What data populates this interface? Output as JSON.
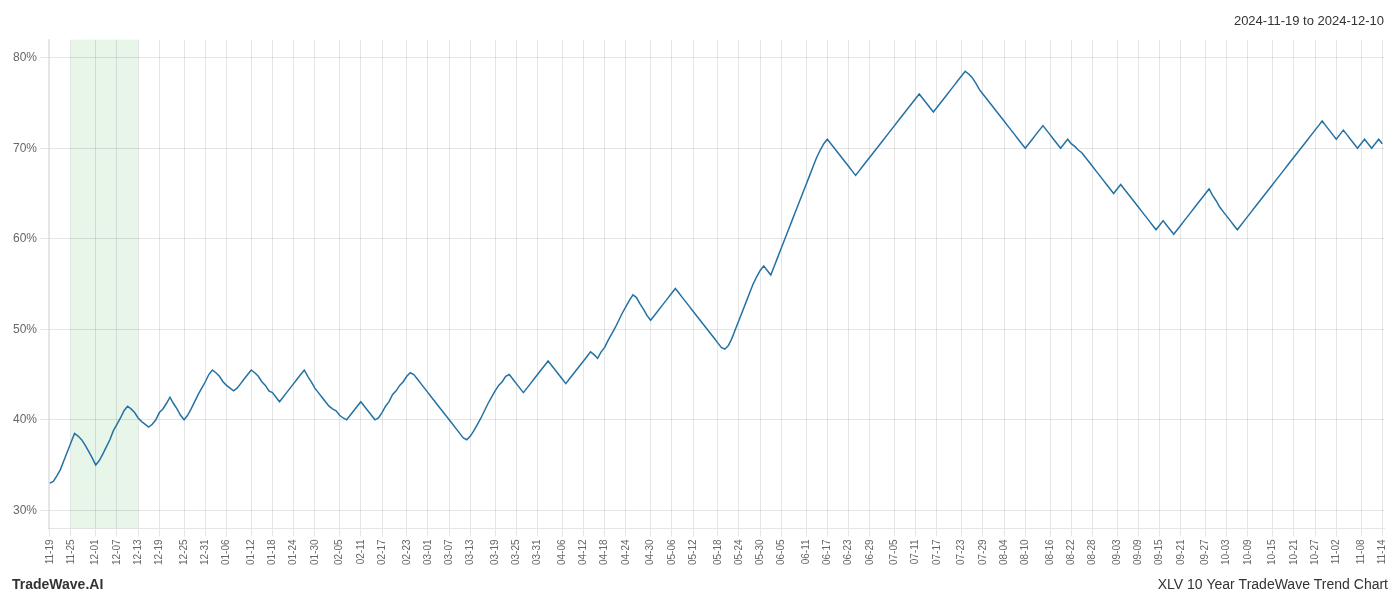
{
  "chart_data": {
    "type": "line",
    "title": "2024-11-19 to 2024-12-10",
    "footnotes": [
      "TradeWave.AI",
      "XLV 10 Year TradeWave Trend Chart"
    ],
    "categories": [
      "11-19",
      null,
      null,
      null,
      null,
      null,
      "11-25",
      null,
      null,
      null,
      null,
      null,
      null,
      "12-01",
      null,
      null,
      null,
      null,
      null,
      "12-07",
      null,
      null,
      null,
      null,
      null,
      "12-13",
      null,
      null,
      null,
      null,
      null,
      "12-19",
      null,
      null,
      null,
      null,
      null,
      null,
      "12-25",
      null,
      null,
      null,
      null,
      null,
      "12-31",
      null,
      null,
      null,
      null,
      null,
      "01-06",
      null,
      null,
      null,
      null,
      null,
      null,
      "01-12",
      null,
      null,
      null,
      null,
      null,
      "01-18",
      null,
      null,
      null,
      null,
      null,
      "01-24",
      null,
      null,
      null,
      null,
      null,
      "01-30",
      null,
      null,
      null,
      null,
      null,
      null,
      "02-05",
      null,
      null,
      null,
      null,
      null,
      "02-11",
      null,
      null,
      null,
      null,
      null,
      "02-17",
      null,
      null,
      null,
      null,
      null,
      null,
      "02-23",
      null,
      null,
      null,
      null,
      null,
      "03-01",
      null,
      null,
      null,
      null,
      null,
      "03-07",
      null,
      null,
      null,
      null,
      null,
      "03-13",
      null,
      null,
      null,
      null,
      null,
      null,
      "03-19",
      null,
      null,
      null,
      null,
      null,
      "03-25",
      null,
      null,
      null,
      null,
      null,
      "03-31",
      null,
      null,
      null,
      null,
      null,
      null,
      "04-06",
      null,
      null,
      null,
      null,
      null,
      "04-12",
      null,
      null,
      null,
      null,
      null,
      "04-18",
      null,
      null,
      null,
      null,
      null,
      "04-24",
      null,
      null,
      null,
      null,
      null,
      null,
      "04-30",
      null,
      null,
      null,
      null,
      null,
      "05-06",
      null,
      null,
      null,
      null,
      null,
      "05-12",
      null,
      null,
      null,
      null,
      null,
      null,
      "05-18",
      null,
      null,
      null,
      null,
      null,
      "05-24",
      null,
      null,
      null,
      null,
      null,
      "05-30",
      null,
      null,
      null,
      null,
      null,
      "06-05",
      null,
      null,
      null,
      null,
      null,
      null,
      "06-11",
      null,
      null,
      null,
      null,
      null,
      "06-17",
      null,
      null,
      null,
      null,
      null,
      "06-23",
      null,
      null,
      null,
      null,
      null,
      "06-29",
      null,
      null,
      null,
      null,
      null,
      null,
      "07-05",
      null,
      null,
      null,
      null,
      null,
      "07-11",
      null,
      null,
      null,
      null,
      null,
      "07-17",
      null,
      null,
      null,
      null,
      null,
      null,
      "07-23",
      null,
      null,
      null,
      null,
      null,
      "07-29",
      null,
      null,
      null,
      null,
      null,
      "08-04",
      null,
      null,
      null,
      null,
      null,
      "08-10",
      null,
      null,
      null,
      null,
      null,
      null,
      "08-16",
      null,
      null,
      null,
      null,
      null,
      "08-22",
      null,
      null,
      null,
      null,
      null,
      "08-28",
      null,
      null,
      null,
      null,
      null,
      null,
      "09-03",
      null,
      null,
      null,
      null,
      null,
      "09-09",
      null,
      null,
      null,
      null,
      null,
      "09-15",
      null,
      null,
      null,
      null,
      null,
      "09-21",
      null,
      null,
      null,
      null,
      null,
      null,
      "09-27",
      null,
      null,
      null,
      null,
      null,
      "10-03",
      null,
      null,
      null,
      null,
      null,
      "10-09",
      null,
      null,
      null,
      null,
      null,
      null,
      "10-15",
      null,
      null,
      null,
      null,
      null,
      "10-21",
      null,
      null,
      null,
      null,
      null,
      "10-27",
      null,
      null,
      null,
      null,
      null,
      "11-02",
      null,
      null,
      null,
      null,
      null,
      null,
      "11-08",
      null,
      null,
      null,
      null,
      null,
      "11-14"
    ],
    "values": [
      33.0,
      33.2,
      33.8,
      34.5,
      35.5,
      36.5,
      37.5,
      38.5,
      38.2,
      37.8,
      37.2,
      36.5,
      35.8,
      35.0,
      35.5,
      36.2,
      37.0,
      37.8,
      38.8,
      39.5,
      40.2,
      41.0,
      41.5,
      41.2,
      40.8,
      40.2,
      39.8,
      39.5,
      39.2,
      39.5,
      40.0,
      40.8,
      41.2,
      41.8,
      42.5,
      41.8,
      41.2,
      40.5,
      40.0,
      40.5,
      41.2,
      42.0,
      42.8,
      43.5,
      44.2,
      45.0,
      45.5,
      45.2,
      44.8,
      44.2,
      43.8,
      43.5,
      43.2,
      43.5,
      44.0,
      44.5,
      45.0,
      45.5,
      45.2,
      44.8,
      44.2,
      43.8,
      43.2,
      43.0,
      42.5,
      42.0,
      42.5,
      43.0,
      43.5,
      44.0,
      44.5,
      45.0,
      45.5,
      44.8,
      44.2,
      43.5,
      43.0,
      42.5,
      42.0,
      41.5,
      41.2,
      41.0,
      40.5,
      40.2,
      40.0,
      40.5,
      41.0,
      41.5,
      42.0,
      41.5,
      41.0,
      40.5,
      40.0,
      40.2,
      40.8,
      41.5,
      42.0,
      42.8,
      43.2,
      43.8,
      44.2,
      44.8,
      45.2,
      45.0,
      44.5,
      44.0,
      43.5,
      43.0,
      42.5,
      42.0,
      41.5,
      41.0,
      40.5,
      40.0,
      39.5,
      39.0,
      38.5,
      38.0,
      37.8,
      38.2,
      38.8,
      39.5,
      40.2,
      41.0,
      41.8,
      42.5,
      43.2,
      43.8,
      44.2,
      44.8,
      45.0,
      44.5,
      44.0,
      43.5,
      43.0,
      43.5,
      44.0,
      44.5,
      45.0,
      45.5,
      46.0,
      46.5,
      46.0,
      45.5,
      45.0,
      44.5,
      44.0,
      44.5,
      45.0,
      45.5,
      46.0,
      46.5,
      47.0,
      47.5,
      47.2,
      46.8,
      47.5,
      48.0,
      48.8,
      49.5,
      50.2,
      51.0,
      51.8,
      52.5,
      53.2,
      53.8,
      53.5,
      52.8,
      52.2,
      51.5,
      51.0,
      51.5,
      52.0,
      52.5,
      53.0,
      53.5,
      54.0,
      54.5,
      54.0,
      53.5,
      53.0,
      52.5,
      52.0,
      51.5,
      51.0,
      50.5,
      50.0,
      49.5,
      49.0,
      48.5,
      48.0,
      47.8,
      48.2,
      49.0,
      50.0,
      51.0,
      52.0,
      53.0,
      54.0,
      55.0,
      55.8,
      56.5,
      57.0,
      56.5,
      56.0,
      57.0,
      58.0,
      59.0,
      60.0,
      61.0,
      62.0,
      63.0,
      64.0,
      65.0,
      66.0,
      67.0,
      68.0,
      69.0,
      69.8,
      70.5,
      71.0,
      70.5,
      70.0,
      69.5,
      69.0,
      68.5,
      68.0,
      67.5,
      67.0,
      67.5,
      68.0,
      68.5,
      69.0,
      69.5,
      70.0,
      70.5,
      71.0,
      71.5,
      72.0,
      72.5,
      73.0,
      73.5,
      74.0,
      74.5,
      75.0,
      75.5,
      76.0,
      75.5,
      75.0,
      74.5,
      74.0,
      74.5,
      75.0,
      75.5,
      76.0,
      76.5,
      77.0,
      77.5,
      78.0,
      78.5,
      78.2,
      77.8,
      77.2,
      76.5,
      76.0,
      75.5,
      75.0,
      74.5,
      74.0,
      73.5,
      73.0,
      72.5,
      72.0,
      71.5,
      71.0,
      70.5,
      70.0,
      70.5,
      71.0,
      71.5,
      72.0,
      72.5,
      72.0,
      71.5,
      71.0,
      70.5,
      70.0,
      70.5,
      71.0,
      70.5,
      70.2,
      69.8,
      69.5,
      69.0,
      68.5,
      68.0,
      67.5,
      67.0,
      66.5,
      66.0,
      65.5,
      65.0,
      65.5,
      66.0,
      65.5,
      65.0,
      64.5,
      64.0,
      63.5,
      63.0,
      62.5,
      62.0,
      61.5,
      61.0,
      61.5,
      62.0,
      61.5,
      61.0,
      60.5,
      61.0,
      61.5,
      62.0,
      62.5,
      63.0,
      63.5,
      64.0,
      64.5,
      65.0,
      65.5,
      64.8,
      64.2,
      63.5,
      63.0,
      62.5,
      62.0,
      61.5,
      61.0,
      61.5,
      62.0,
      62.5,
      63.0,
      63.5,
      64.0,
      64.5,
      65.0,
      65.5,
      66.0,
      66.5,
      67.0,
      67.5,
      68.0,
      68.5,
      69.0,
      69.5,
      70.0,
      70.5,
      71.0,
      71.5,
      72.0,
      72.5,
      73.0,
      72.5,
      72.0,
      71.5,
      71.0,
      71.5,
      72.0,
      71.5,
      71.0,
      70.5,
      70.0,
      70.5,
      71.0,
      70.5,
      70.0,
      70.5,
      71.0,
      70.5
    ],
    "color": "#2471a3",
    "ylim": [
      28,
      82
    ],
    "yticks": [
      {
        "value": 30,
        "label": "30%"
      },
      {
        "value": 40,
        "label": "40%"
      },
      {
        "value": 50,
        "label": "50%"
      },
      {
        "value": 60,
        "label": "60%"
      },
      {
        "value": 70,
        "label": "70%"
      },
      {
        "value": 80,
        "label": "80%"
      }
    ],
    "grid": true,
    "highlight": {
      "from": "11-25",
      "to": "12-13",
      "color": "#e8f5e9"
    }
  }
}
